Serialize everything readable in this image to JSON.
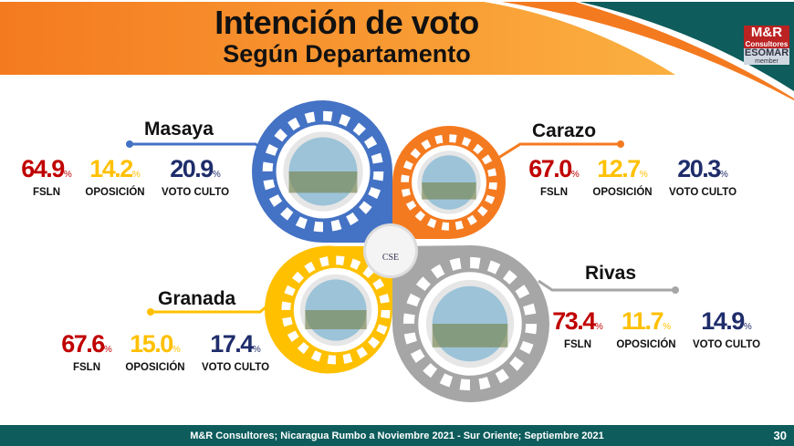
{
  "header": {
    "title": "Intención de voto",
    "subtitle": "Según Departamento"
  },
  "logo": {
    "line1": "M&R",
    "line2": "Consultores",
    "line3": "ESOMAR",
    "line4": "member"
  },
  "colors": {
    "orange": "#f47a20",
    "teal": "#0e5c5c",
    "blue": "#4472c4",
    "gray": "#a6a6a6",
    "yellow": "#ffc000",
    "red": "#c00000",
    "navy": "#1f2d6b"
  },
  "labels": {
    "fsln": "FSLN",
    "oposicion": "OPOSICIÓN",
    "voto_culto": "VOTO CULTO",
    "pct": "%"
  },
  "departments": [
    {
      "name": "Masaya",
      "fsln": "64.9",
      "oposicion": "14.2",
      "voto_culto": "20.9"
    },
    {
      "name": "Carazo",
      "fsln": "67.0",
      "oposicion": "12.7",
      "voto_culto": "20.3"
    },
    {
      "name": "Granada",
      "fsln": "67.6",
      "oposicion": "15.0",
      "voto_culto": "17.4"
    },
    {
      "name": "Rivas",
      "fsln": "73.4",
      "oposicion": "11.7",
      "voto_culto": "14.9"
    }
  ],
  "center_badge": "CSE",
  "footer": {
    "text": "M&R Consultores; Nicaragua Rumbo a Noviembre 2021 - Sur Oriente; Septiembre 2021",
    "page": "30"
  }
}
